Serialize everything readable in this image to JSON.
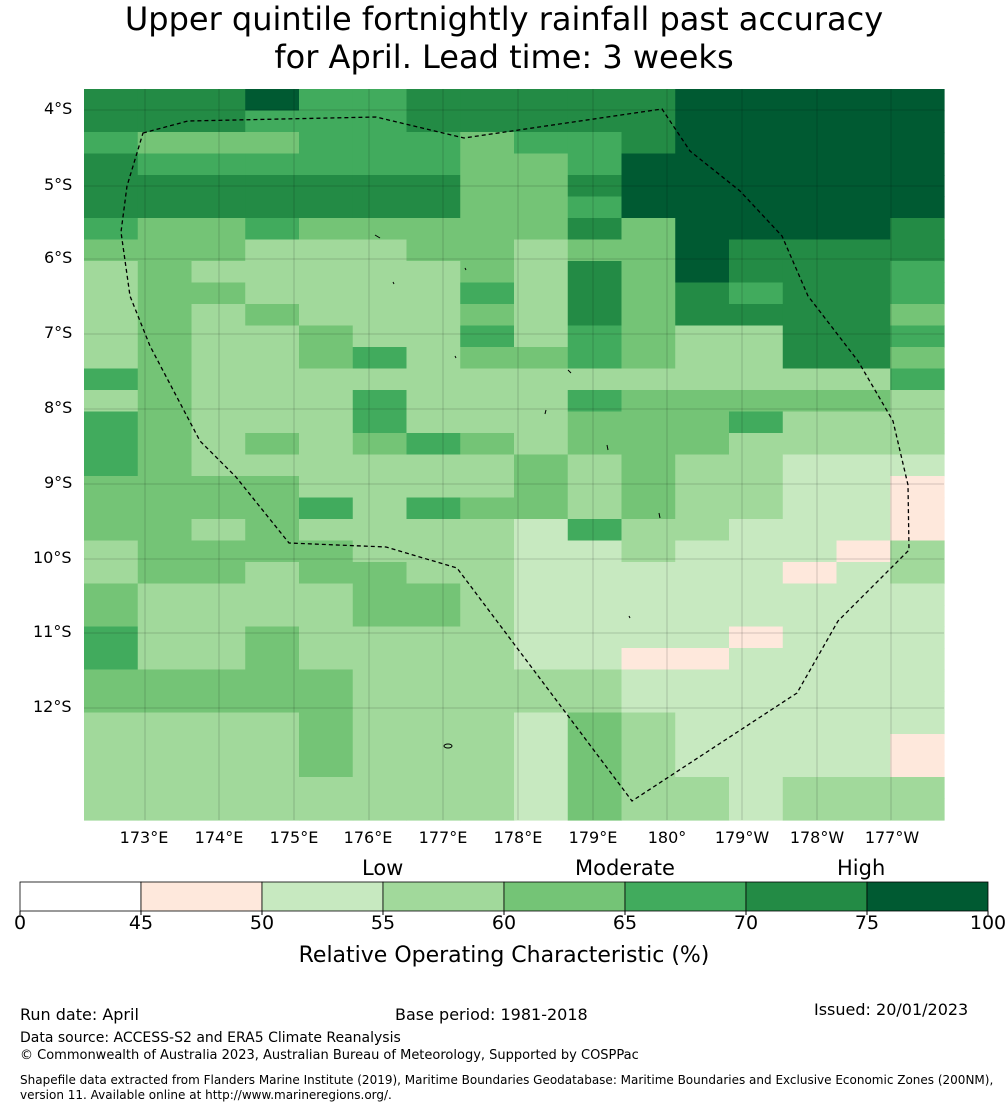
{
  "title_line1": "Upper quintile fortnightly rainfall past accuracy",
  "title_line2": "for April. Lead time: 3 weeks",
  "lat_labels": [
    "4°S",
    "5°S",
    "6°S",
    "7°S",
    "8°S",
    "9°S",
    "10°S",
    "11°S",
    "12°S"
  ],
  "lon_labels": [
    "173°E",
    "174°E",
    "175°E",
    "176°E",
    "177°E",
    "178°E",
    "179°E",
    "180°",
    "179°W",
    "178°W",
    "177°W"
  ],
  "colorbar": {
    "categories": [
      "Low",
      "Moderate",
      "High"
    ],
    "ticks": [
      "0",
      "45",
      "50",
      "55",
      "60",
      "65",
      "70",
      "75",
      "100"
    ],
    "bin_colors": [
      "#ffffff",
      "#fee8dc",
      "#c7e9c0",
      "#a1d99b",
      "#74c476",
      "#41ab5d",
      "#238b45",
      "#005a32"
    ],
    "title": "Relative Operating Characteristic (%)"
  },
  "grid": {
    "bin_colors": [
      "#ffffff",
      "#fee8dc",
      "#c7e9c0",
      "#a1d99b",
      "#74c476",
      "#41ab5d",
      "#238b45",
      "#005a32"
    ],
    "rows": [
      "6667556666677777",
      "6665556666677777",
      "5444555455677777",
      "6555555445777777",
      "6666666446777777",
      "6666666445777777",
      "5445444446477776",
      "4443334434476666",
      "3433333436476665",
      "3443333536465665",
      "3434333436466664",
      "3433433535433665",
      "3433453445433664",
      "5433333333333335",
      "3433353335444443",
      "5433353334445333",
      "5434345434443333",
      "5433333343433222",
      "4444333343433221",
      "4444535443433221",
      "4434333325332221",
      "3444433322322213",
      "3443443322222123",
      "4333344322222222",
      "4333344322222222",
      "5334333322221222",
      "5334333322112222",
      "4444433333222222",
      "4444433333222222",
      "3333433324322222",
      "3333433324322221",
      "3333433324322221",
      "3333333324332333",
      "3333333324332333"
    ]
  },
  "footer": {
    "run_date": "Run date: April",
    "base_period": "Base period: 1981-2018",
    "issued": "Issued: 20/01/2023",
    "data_source": "Data source: ACCESS-S2 and ERA5 Climate Reanalysis",
    "copyright": "© Commonwealth of Australia 2023, Australian Bureau of Meteorology, Supported by COSPPac",
    "shapefile_line1": "Shapefile data extracted from Flanders Marine Institute (2019), Maritime Boundaries Geodatabase: Maritime Boundaries and Exclusive Economic Zones (200NM),",
    "shapefile_line2": "version 11. Available online at http://www.marineregions.org/."
  }
}
